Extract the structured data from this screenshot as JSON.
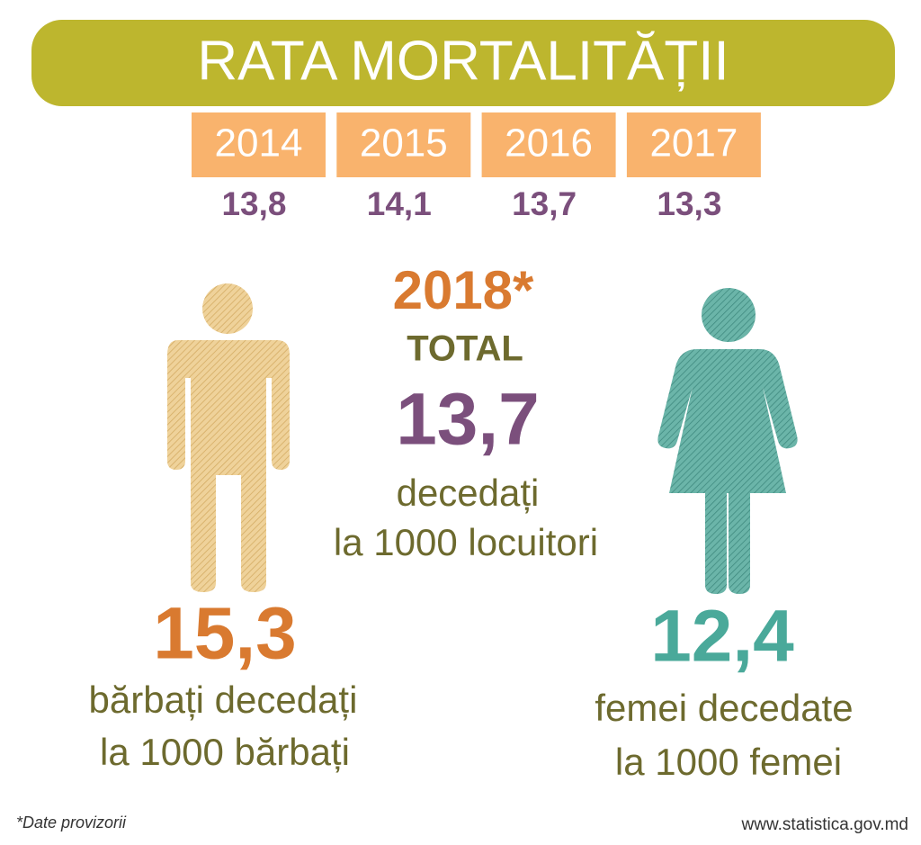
{
  "title": "RATA MORTALITĂȚII",
  "years": [
    {
      "year": "2014",
      "rate": "13,8"
    },
    {
      "year": "2015",
      "rate": "14,1"
    },
    {
      "year": "2016",
      "rate": "13,7"
    },
    {
      "year": "2017",
      "rate": "13,3"
    }
  ],
  "current": {
    "year": "2018*",
    "label": "TOTAL",
    "rate": "13,7",
    "lines": [
      "decedați",
      "la 1000 locuitori"
    ]
  },
  "men": {
    "rate": "15,3",
    "lines": [
      "bărbați decedați",
      "la 1000 bărbați"
    ]
  },
  "women": {
    "rate": "12,4",
    "lines": [
      "femei decedate",
      "la 1000 femei"
    ]
  },
  "footnote": "*Date provizorii",
  "source": "www.statistica.gov.md"
}
